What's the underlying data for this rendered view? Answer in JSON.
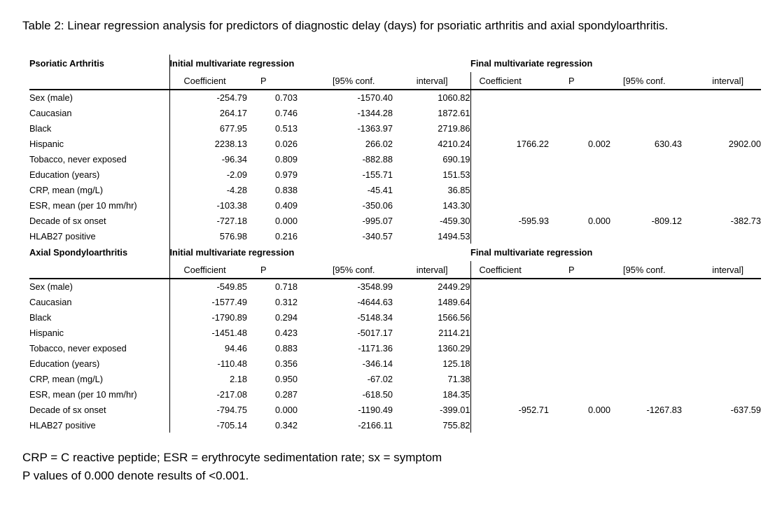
{
  "caption": "Table 2: Linear regression analysis for predictors of diagnostic delay (days) for psoriatic arthritis and axial spondyloarthritis.",
  "footnotes": [
    "CRP = C reactive peptide; ESR = erythrocyte sedimentation rate; sx = symptom",
    "P values of 0.000 denote results of <0.001."
  ],
  "chart_data": {
    "type": "table",
    "title": "Table 2: Linear regression analysis for predictors of diagnostic delay (days) for psoriatic arthritis and axial spondyloarthritis.",
    "column_groups": [
      "Initial multivariate regression",
      "Final multivariate regression"
    ],
    "columns": [
      "Coefficient",
      "P",
      "[95% conf.",
      "interval]"
    ],
    "sections": [
      {
        "label": "Psoriatic Arthritis",
        "rows": [
          {
            "label": "Sex (male)",
            "initial": [
              "-254.79",
              "0.703",
              "-1570.40",
              "1060.82"
            ],
            "final": [
              "",
              "",
              "",
              ""
            ]
          },
          {
            "label": "Caucasian",
            "initial": [
              "264.17",
              "0.746",
              "-1344.28",
              "1872.61"
            ],
            "final": [
              "",
              "",
              "",
              ""
            ]
          },
          {
            "label": "Black",
            "initial": [
              "677.95",
              "0.513",
              "-1363.97",
              "2719.86"
            ],
            "final": [
              "",
              "",
              "",
              ""
            ]
          },
          {
            "label": "Hispanic",
            "initial": [
              "2238.13",
              "0.026",
              "266.02",
              "4210.24"
            ],
            "final": [
              "1766.22",
              "0.002",
              "630.43",
              "2902.00"
            ]
          },
          {
            "label": "Tobacco, never exposed",
            "initial": [
              "-96.34",
              "0.809",
              "-882.88",
              "690.19"
            ],
            "final": [
              "",
              "",
              "",
              ""
            ]
          },
          {
            "label": "Education (years)",
            "initial": [
              "-2.09",
              "0.979",
              "-155.71",
              "151.53"
            ],
            "final": [
              "",
              "",
              "",
              ""
            ]
          },
          {
            "label": "CRP, mean (mg/L)",
            "initial": [
              "-4.28",
              "0.838",
              "-45.41",
              "36.85"
            ],
            "final": [
              "",
              "",
              "",
              ""
            ]
          },
          {
            "label": "ESR, mean (per 10 mm/hr)",
            "initial": [
              "-103.38",
              "0.409",
              "-350.06",
              "143.30"
            ],
            "final": [
              "",
              "",
              "",
              ""
            ]
          },
          {
            "label": "Decade of sx onset",
            "initial": [
              "-727.18",
              "0.000",
              "-995.07",
              "-459.30"
            ],
            "final": [
              "-595.93",
              "0.000",
              "-809.12",
              "-382.73"
            ]
          },
          {
            "label": "HLAB27 positive",
            "initial": [
              "576.98",
              "0.216",
              "-340.57",
              "1494.53"
            ],
            "final": [
              "",
              "",
              "",
              ""
            ]
          }
        ]
      },
      {
        "label": "Axial Spondyloarthritis",
        "rows": [
          {
            "label": "Sex (male)",
            "initial": [
              "-549.85",
              "0.718",
              "-3548.99",
              "2449.29"
            ],
            "final": [
              "",
              "",
              "",
              ""
            ]
          },
          {
            "label": "Caucasian",
            "initial": [
              "-1577.49",
              "0.312",
              "-4644.63",
              "1489.64"
            ],
            "final": [
              "",
              "",
              "",
              ""
            ]
          },
          {
            "label": "Black",
            "initial": [
              "-1790.89",
              "0.294",
              "-5148.34",
              "1566.56"
            ],
            "final": [
              "",
              "",
              "",
              ""
            ]
          },
          {
            "label": "Hispanic",
            "initial": [
              "-1451.48",
              "0.423",
              "-5017.17",
              "2114.21"
            ],
            "final": [
              "",
              "",
              "",
              ""
            ]
          },
          {
            "label": "Tobacco, never exposed",
            "initial": [
              "94.46",
              "0.883",
              "-1171.36",
              "1360.29"
            ],
            "final": [
              "",
              "",
              "",
              ""
            ]
          },
          {
            "label": "Education (years)",
            "initial": [
              "-110.48",
              "0.356",
              "-346.14",
              "125.18"
            ],
            "final": [
              "",
              "",
              "",
              ""
            ]
          },
          {
            "label": "CRP, mean (mg/L)",
            "initial": [
              "2.18",
              "0.950",
              "-67.02",
              "71.38"
            ],
            "final": [
              "",
              "",
              "",
              ""
            ]
          },
          {
            "label": "ESR, mean (per 10 mm/hr)",
            "initial": [
              "-217.08",
              "0.287",
              "-618.50",
              "184.35"
            ],
            "final": [
              "",
              "",
              "",
              ""
            ]
          },
          {
            "label": "Decade of sx onset",
            "initial": [
              "-794.75",
              "0.000",
              "-1190.49",
              "-399.01"
            ],
            "final": [
              "-952.71",
              "0.000",
              "-1267.83",
              "-637.59"
            ]
          },
          {
            "label": "HLAB27 positive",
            "initial": [
              "-705.14",
              "0.342",
              "-2166.11",
              "755.82"
            ],
            "final": [
              "",
              "",
              "",
              ""
            ]
          }
        ]
      }
    ]
  }
}
